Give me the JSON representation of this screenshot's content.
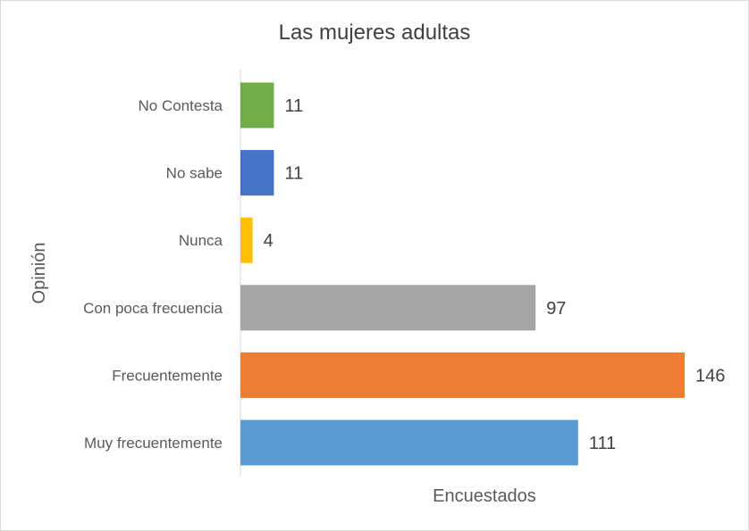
{
  "chart_data": {
    "type": "bar",
    "orientation": "horizontal",
    "title": "Las mujeres adultas",
    "xlabel": "Encuestados",
    "ylabel": "Opinión",
    "categories": [
      "Muy  frecuentemente",
      "Frecuentemente",
      "Con poca frecuencia",
      "Nunca",
      "No sabe",
      "No Contesta"
    ],
    "values": [
      111,
      146,
      97,
      4,
      11,
      11
    ],
    "colors": [
      "#5b9bd5",
      "#ed7d31",
      "#a5a5a5",
      "#ffc000",
      "#4472c4",
      "#70ad47"
    ],
    "xlim": [
      0,
      146
    ],
    "grid": false,
    "legend": "none"
  }
}
